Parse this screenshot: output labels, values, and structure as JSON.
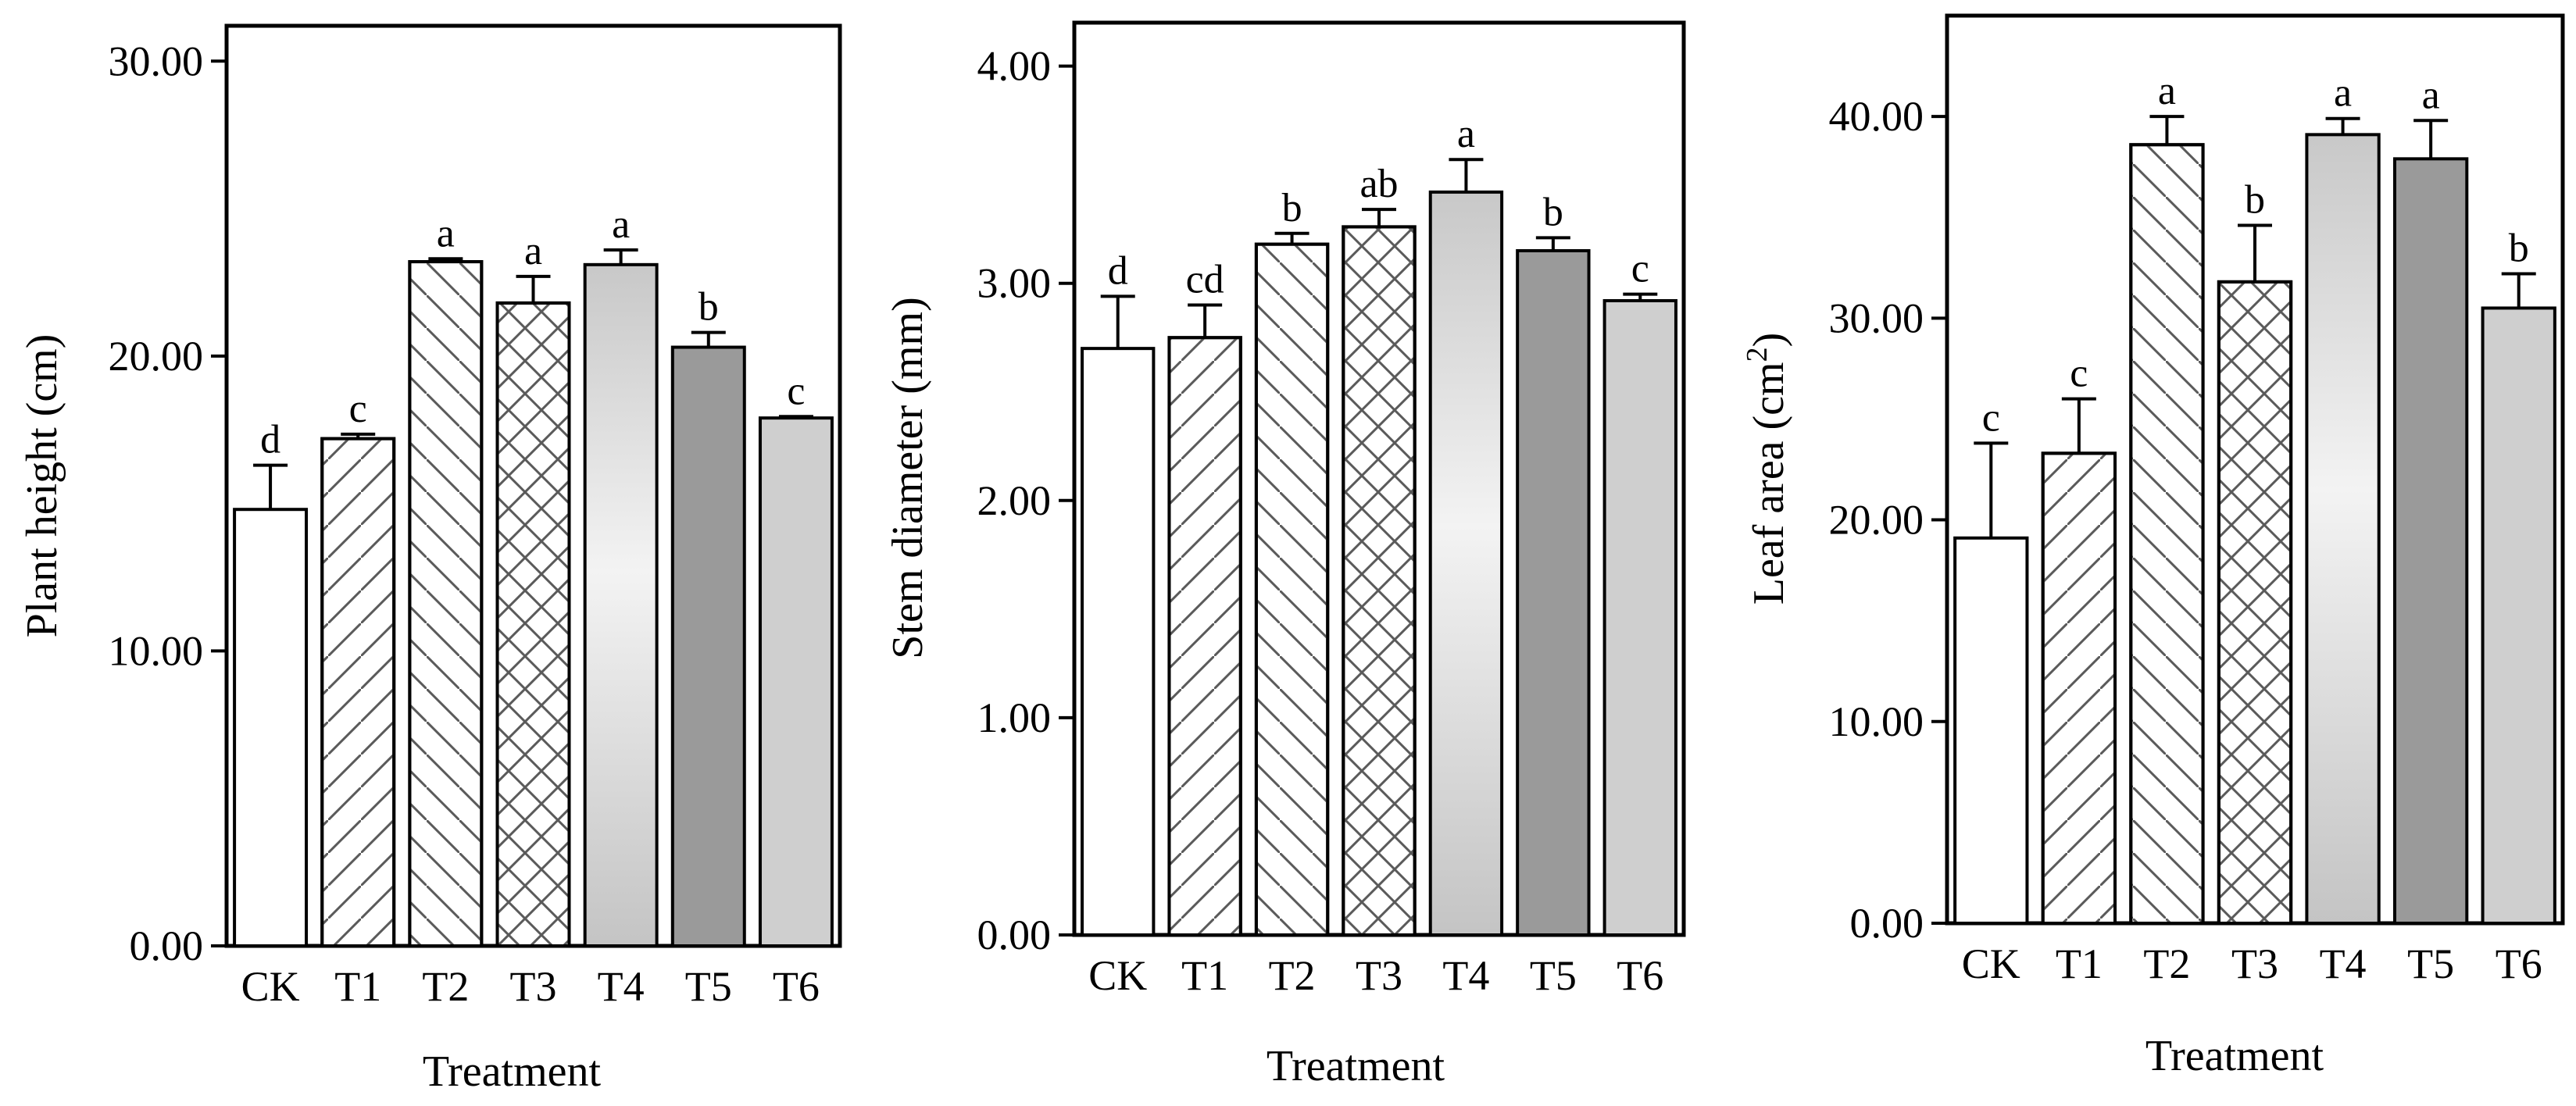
{
  "chart_data": [
    {
      "type": "bar",
      "xlabel": "Treatment",
      "ylabel": "Plant height (cm)",
      "ylim": [
        0,
        31.2
      ],
      "yticks": [
        0,
        10,
        20,
        30
      ],
      "yticklabels": [
        "0.00",
        "10.00",
        "20.00",
        "30.00"
      ],
      "categories": [
        "CK",
        "T1",
        "T2",
        "T3",
        "T4",
        "T5",
        "T6"
      ],
      "values": [
        14.8,
        17.2,
        23.2,
        21.8,
        23.1,
        20.3,
        17.9
      ],
      "errors": [
        1.5,
        0.15,
        0.1,
        0.9,
        0.5,
        0.5,
        0.05
      ],
      "significance": [
        "d",
        "c",
        "a",
        "a",
        "a",
        "b",
        "c"
      ]
    },
    {
      "type": "bar",
      "xlabel": "Treatment",
      "ylabel": "Stem diameter (mm)",
      "ylim": [
        0,
        4.2
      ],
      "yticks": [
        0,
        1,
        2,
        3,
        4
      ],
      "yticklabels": [
        "0.00",
        "1.00",
        "2.00",
        "3.00",
        "4.00"
      ],
      "categories": [
        "CK",
        "T1",
        "T2",
        "T3",
        "T4",
        "T5",
        "T6"
      ],
      "values": [
        2.7,
        2.75,
        3.18,
        3.26,
        3.42,
        3.15,
        2.92
      ],
      "errors": [
        0.24,
        0.15,
        0.05,
        0.08,
        0.15,
        0.06,
        0.03
      ],
      "significance": [
        "d",
        "cd",
        "b",
        "ab",
        "a",
        "b",
        "c"
      ]
    },
    {
      "type": "bar",
      "xlabel": "Treatment",
      "ylabel_main": "Leaf area (cm",
      "ylabel_sup": "2",
      "ylabel_close": ")",
      "ylim": [
        0,
        45
      ],
      "yticks": [
        0,
        10,
        20,
        30,
        40
      ],
      "yticklabels": [
        "0.00",
        "10.00",
        "20.00",
        "30.00",
        "40.00"
      ],
      "categories": [
        "CK",
        "T1",
        "T2",
        "T3",
        "T4",
        "T5",
        "T6"
      ],
      "values": [
        19.1,
        23.3,
        38.6,
        31.8,
        39.1,
        37.9,
        30.5
      ],
      "errors": [
        4.7,
        2.7,
        1.4,
        2.8,
        0.8,
        1.9,
        1.7
      ],
      "significance": [
        "c",
        "c",
        "a",
        "b",
        "a",
        "a",
        "b"
      ]
    }
  ],
  "style": {
    "fills": [
      "#ffffff",
      "#ffffff",
      "#ffffff",
      "#ffffff",
      "#d6d6d6",
      "#9a9a9a",
      "#cfcfcf"
    ],
    "patterns": [
      "none",
      "diag-up",
      "diag-down",
      "cross",
      "none",
      "none",
      "none"
    ],
    "stroke": "#000000",
    "hatch": "#5a5a5a"
  }
}
